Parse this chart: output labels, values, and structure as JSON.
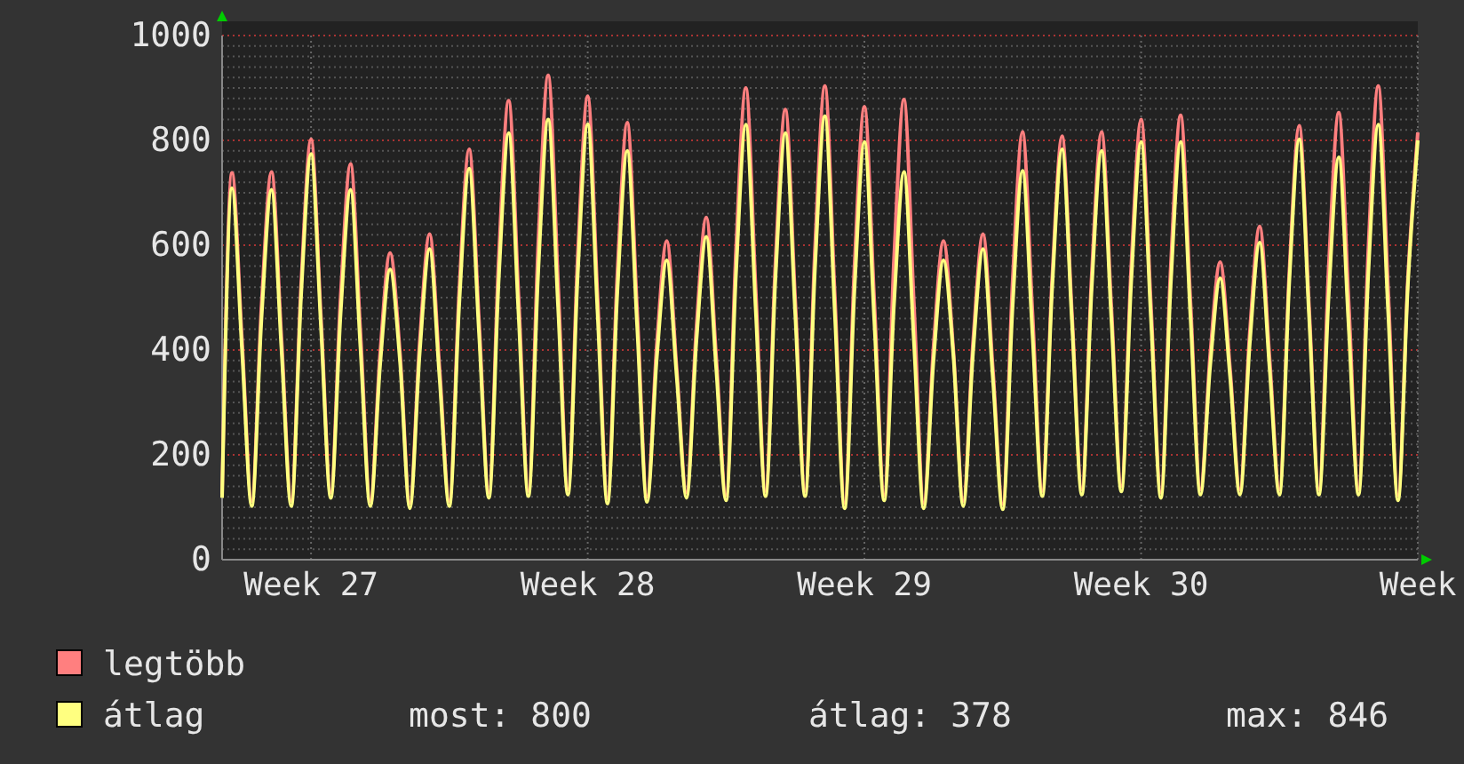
{
  "chart_data": {
    "type": "line",
    "categories": [
      null,
      null,
      null,
      null,
      null,
      null,
      null,
      null,
      null,
      "Week 27",
      null,
      null,
      null,
      null,
      null,
      null,
      null,
      null,
      null,
      null,
      null,
      null,
      null,
      null,
      null,
      null,
      null,
      null,
      null,
      null,
      null,
      null,
      null,
      null,
      null,
      null,
      null,
      "Week 28",
      null,
      null,
      null,
      null,
      null,
      null,
      null,
      null,
      null,
      null,
      null,
      null,
      null,
      null,
      null,
      null,
      null,
      null,
      null,
      null,
      null,
      null,
      null,
      null,
      null,
      null,
      null,
      "Week 29",
      null,
      null,
      null,
      null,
      null,
      null,
      null,
      null,
      null,
      null,
      null,
      null,
      null,
      null,
      null,
      null,
      null,
      null,
      null,
      null,
      null,
      null,
      null,
      null,
      null,
      null,
      null,
      "Week 30",
      null,
      null,
      null,
      null,
      null,
      null,
      null,
      null,
      null,
      null,
      null,
      null,
      null,
      null,
      null,
      null,
      null,
      null,
      null,
      null,
      null,
      null,
      null,
      null,
      null,
      null,
      null,
      "Week"
    ],
    "series": [
      {
        "name": "legtöbb",
        "color": "#ff7f7f",
        "values": [
          125,
          738,
          425,
          112,
          489,
          740,
          426,
          112,
          526,
          802,
          465,
          128,
          504,
          755,
          434,
          112,
          396,
          585,
          395,
          108,
          416,
          621,
          367,
          112,
          515,
          783,
          456,
          128,
          577,
          876,
          504,
          131,
          607,
          924,
          529,
          134,
          584,
          884,
          501,
          117,
          547,
          834,
          477,
          120,
          413,
          608,
          365,
          128,
          443,
          653,
          388,
          123,
          589,
          900,
          516,
          131,
          568,
          859,
          495,
          131,
          595,
          904,
          506,
          108,
          562,
          864,
          494,
          123,
          576,
          878,
          493,
          108,
          408,
          608,
          400,
          112,
          417,
          621,
          364,
          106,
          532,
          816,
          474,
          131,
          537,
          808,
          471,
          134,
          543,
          816,
          478,
          140,
          560,
          840,
          484,
          128,
          560,
          848,
          491,
          134,
          394,
          568,
          365,
          134,
          435,
          636,
          385,
          134,
          550,
          828,
          481,
          134,
          565,
          853,
          494,
          134,
          596,
          904,
          514,
          123,
          538,
          815
        ]
      },
      {
        "name": "átlag",
        "color": "#ffff80",
        "values": [
          118,
          709,
          405,
          102,
          464,
          706,
          404,
          102,
          505,
          774,
          446,
          118,
          471,
          706,
          404,
          102,
          373,
          554,
          379,
          98,
          395,
          593,
          348,
          102,
          488,
          746,
          432,
          118,
          536,
          814,
          468,
          121,
          552,
          840,
          482,
          124,
          548,
          831,
          469,
          107,
          511,
          780,
          445,
          110,
          387,
          571,
          350,
          118,
          417,
          616,
          365,
          113,
          543,
          830,
          476,
          121,
          537,
          814,
          468,
          121,
          556,
          846,
          472,
          98,
          517,
          797,
          455,
          113,
          489,
          740,
          419,
          98,
          382,
          571,
          390,
          102,
          397,
          593,
          345,
          96,
          484,
          742,
          432,
          121,
          518,
          783,
          454,
          124,
          518,
          780,
          455,
          130,
          530,
          797,
          458,
          118,
          525,
          797,
          461,
          124,
          372,
          537,
          350,
          124,
          413,
          605,
          365,
          124,
          531,
          802,
          463,
          124,
          510,
          768,
          446,
          124,
          548,
          830,
          472,
          113,
          525,
          800
        ]
      }
    ],
    "ylim": [
      0,
      1000
    ],
    "yticks": [
      0,
      200,
      400,
      600,
      800,
      1000
    ],
    "grid": true,
    "legend": "bottom",
    "annotations": [
      "most: 800",
      "átlag: 378",
      "max: 846"
    ]
  }
}
